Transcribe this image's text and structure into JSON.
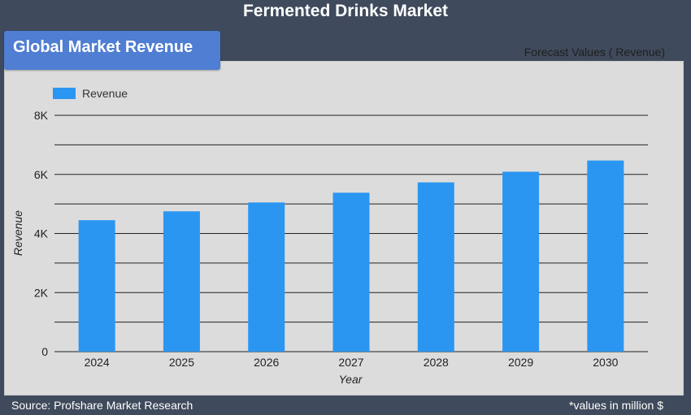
{
  "page": {
    "title": "Fermented Drinks Market",
    "badge": "Global Market Revenue",
    "forecast_note": "Forecast Values ( Revenue)",
    "source": "Source: Profshare Market Research",
    "units_note": "*values in million $"
  },
  "colors": {
    "bar": "#2b96f2",
    "background": "#3f4a5c",
    "panel": "#dcdcdc",
    "badge": "#4f7ed2"
  },
  "chart_data": {
    "type": "bar",
    "categories": [
      "2024",
      "2025",
      "2026",
      "2027",
      "2028",
      "2029",
      "2030"
    ],
    "series": [
      {
        "name": "Revenue",
        "values": [
          4450,
          4750,
          5050,
          5380,
          5730,
          6090,
          6470
        ]
      }
    ],
    "xlabel": "Year",
    "ylabel": "Revenue",
    "ylim": [
      0,
      8000
    ],
    "yticks": [
      0,
      2000,
      4000,
      6000,
      8000
    ],
    "ytick_labels": [
      "0",
      "2K",
      "4K",
      "6K",
      "8K"
    ],
    "grid": true,
    "legend_position": "top-left"
  }
}
